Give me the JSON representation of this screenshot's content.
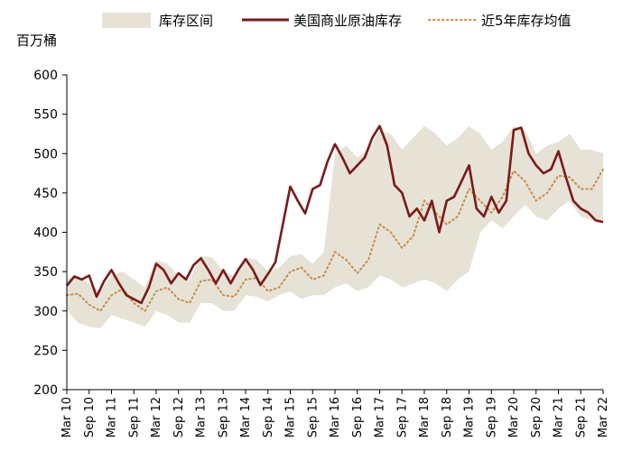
{
  "chart_data": {
    "type": "line",
    "y_unit_label": "百万桶",
    "ylim": [
      200,
      600
    ],
    "yticks": [
      200,
      250,
      300,
      350,
      400,
      450,
      500,
      550,
      600
    ],
    "x_tick_labels": [
      "Mar 10",
      "Sep 10",
      "Mar 11",
      "Sep 11",
      "Mar 12",
      "Sep 12",
      "Mar 13",
      "Sep 13",
      "Mar 14",
      "Sep 14",
      "Mar 15",
      "Sep 15",
      "Mar 16",
      "Sep 16",
      "Mar 17",
      "Sep 17",
      "Mar 18",
      "Sep 18",
      "Mar 19",
      "Sep 19",
      "Mar 20",
      "Sep 20",
      "Mar 21",
      "Sep 21",
      "Mar 22"
    ],
    "grid": false,
    "legend_position": "top",
    "colors": {
      "band": "#e6e2d6",
      "actual": "#7a1a1a",
      "avg": "#c98a4a"
    },
    "series": [
      {
        "name": "美国商业原油库存",
        "style": "solid",
        "x": [
          "2010-03",
          "2010-05",
          "2010-07",
          "2010-09",
          "2010-11",
          "2011-01",
          "2011-03",
          "2011-05",
          "2011-07",
          "2011-09",
          "2011-11",
          "2012-01",
          "2012-03",
          "2012-05",
          "2012-07",
          "2012-09",
          "2012-11",
          "2013-01",
          "2013-03",
          "2013-05",
          "2013-07",
          "2013-09",
          "2013-11",
          "2014-01",
          "2014-03",
          "2014-05",
          "2014-07",
          "2014-09",
          "2014-11",
          "2015-01",
          "2015-03",
          "2015-05",
          "2015-07",
          "2015-09",
          "2015-11",
          "2016-01",
          "2016-03",
          "2016-05",
          "2016-07",
          "2016-09",
          "2016-11",
          "2017-01",
          "2017-03",
          "2017-05",
          "2017-07",
          "2017-09",
          "2017-11",
          "2018-01",
          "2018-03",
          "2018-05",
          "2018-07",
          "2018-09",
          "2018-11",
          "2019-01",
          "2019-03",
          "2019-05",
          "2019-07",
          "2019-09",
          "2019-11",
          "2020-01",
          "2020-03",
          "2020-05",
          "2020-07",
          "2020-09",
          "2020-11",
          "2021-01",
          "2021-03",
          "2021-05",
          "2021-07",
          "2021-09",
          "2021-11",
          "2022-01",
          "2022-03"
        ],
        "values": [
          332,
          344,
          340,
          345,
          318,
          338,
          352,
          335,
          320,
          315,
          310,
          330,
          360,
          352,
          335,
          348,
          340,
          358,
          367,
          352,
          335,
          352,
          335,
          352,
          366,
          352,
          333,
          347,
          362,
          410,
          458,
          440,
          424,
          455,
          460,
          490,
          512,
          495,
          475,
          485,
          495,
          520,
          535,
          510,
          460,
          450,
          420,
          430,
          415,
          440,
          400,
          440,
          445,
          465,
          485,
          430,
          420,
          445,
          425,
          440,
          530,
          533,
          500,
          485,
          475,
          480,
          503,
          470,
          440,
          430,
          425,
          415,
          413
        ]
      },
      {
        "name": "近5年库存均值",
        "style": "dotted",
        "x": [
          "2010-03",
          "2010-06",
          "2010-09",
          "2010-12",
          "2011-03",
          "2011-06",
          "2011-09",
          "2011-12",
          "2012-03",
          "2012-06",
          "2012-09",
          "2012-12",
          "2013-03",
          "2013-06",
          "2013-09",
          "2013-12",
          "2014-03",
          "2014-06",
          "2014-09",
          "2014-12",
          "2015-03",
          "2015-06",
          "2015-09",
          "2015-12",
          "2016-03",
          "2016-06",
          "2016-09",
          "2016-12",
          "2017-03",
          "2017-06",
          "2017-09",
          "2017-12",
          "2018-03",
          "2018-06",
          "2018-09",
          "2018-12",
          "2019-03",
          "2019-06",
          "2019-09",
          "2019-12",
          "2020-03",
          "2020-06",
          "2020-09",
          "2020-12",
          "2021-03",
          "2021-06",
          "2021-09",
          "2021-12",
          "2022-03"
        ],
        "values": [
          320,
          322,
          308,
          300,
          320,
          328,
          310,
          300,
          325,
          330,
          315,
          310,
          338,
          340,
          320,
          318,
          340,
          342,
          325,
          330,
          350,
          355,
          340,
          345,
          375,
          365,
          348,
          365,
          410,
          400,
          380,
          395,
          440,
          425,
          410,
          420,
          455,
          440,
          425,
          445,
          478,
          465,
          440,
          450,
          472,
          470,
          455,
          455,
          480
        ]
      },
      {
        "name": "库存区间",
        "style": "band",
        "x": [
          "2010-03",
          "2010-06",
          "2010-09",
          "2010-12",
          "2011-03",
          "2011-06",
          "2011-09",
          "2011-12",
          "2012-03",
          "2012-06",
          "2012-09",
          "2012-12",
          "2013-03",
          "2013-06",
          "2013-09",
          "2013-12",
          "2014-03",
          "2014-06",
          "2014-09",
          "2014-12",
          "2015-03",
          "2015-06",
          "2015-09",
          "2015-12",
          "2016-03",
          "2016-06",
          "2016-09",
          "2016-12",
          "2017-03",
          "2017-06",
          "2017-09",
          "2017-12",
          "2018-03",
          "2018-06",
          "2018-09",
          "2018-12",
          "2019-03",
          "2019-06",
          "2019-09",
          "2019-12",
          "2020-03",
          "2020-06",
          "2020-09",
          "2020-12",
          "2021-03",
          "2021-06",
          "2021-09",
          "2021-12",
          "2022-03"
        ],
        "upper": [
          340,
          345,
          335,
          325,
          345,
          350,
          340,
          330,
          365,
          360,
          345,
          340,
          370,
          368,
          350,
          345,
          368,
          365,
          350,
          355,
          370,
          372,
          360,
          375,
          500,
          510,
          495,
          505,
          530,
          525,
          505,
          520,
          535,
          525,
          510,
          520,
          535,
          525,
          505,
          515,
          535,
          530,
          500,
          510,
          515,
          525,
          505,
          505,
          500
        ],
        "lower": [
          300,
          285,
          280,
          278,
          295,
          290,
          285,
          280,
          300,
          295,
          285,
          285,
          310,
          310,
          300,
          300,
          320,
          318,
          312,
          320,
          325,
          315,
          320,
          320,
          330,
          335,
          325,
          330,
          345,
          340,
          330,
          335,
          340,
          335,
          325,
          340,
          350,
          400,
          415,
          405,
          420,
          435,
          420,
          415,
          430,
          440,
          420,
          415,
          415
        ]
      }
    ]
  }
}
